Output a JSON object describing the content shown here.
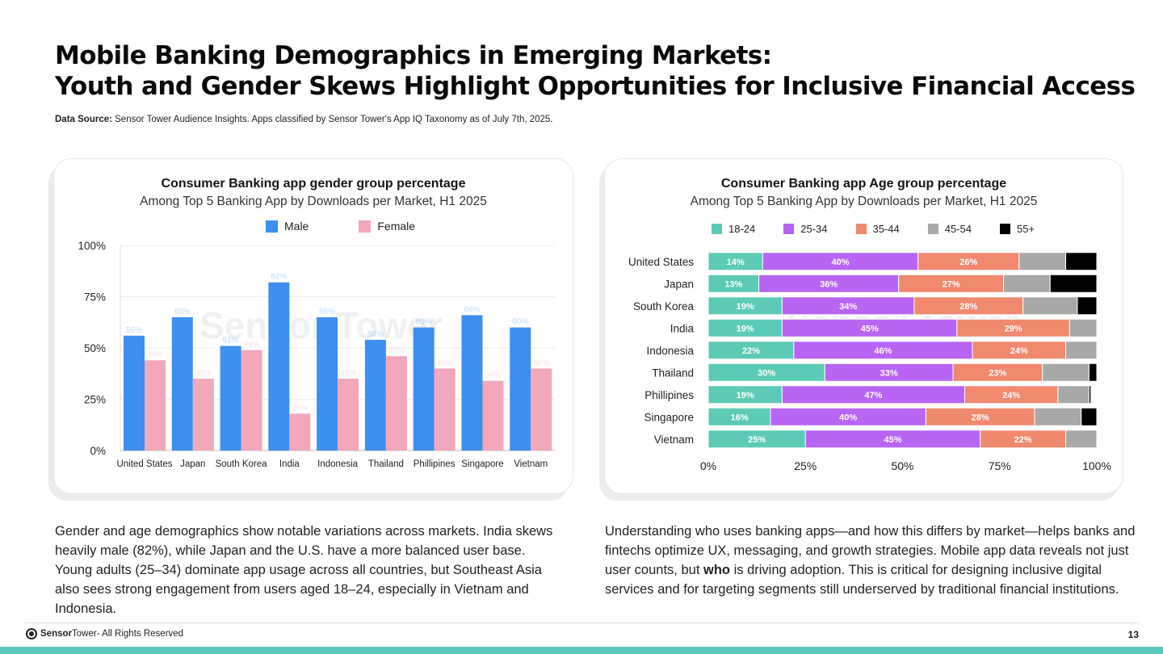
{
  "title_line1": "Mobile Banking Demographics in Emerging Markets:",
  "title_line2": "Youth and Gender Skews Highlight Opportunities for Inclusive Financial Access",
  "source_label": "Data Source:",
  "source_text": "Sensor Tower Audience Insights. Apps classified by Sensor Tower's App IQ Taxonomy as of July 7th, 2025.",
  "colors": {
    "male": "#3d8ff0",
    "female": "#f2a7bb",
    "age_18_24": "#5ccbb5",
    "age_25_34": "#b865f3",
    "age_35_44": "#f0896e",
    "age_45_54": "#a8a8a8",
    "age_55_plus": "#000000",
    "accent": "#5cc8b8"
  },
  "chart_data": [
    {
      "type": "bar",
      "title": "Consumer Banking app gender group percentage",
      "subtitle": "Among Top 5 Banking App by Downloads  per Market, H1  2025",
      "categories": [
        "United States",
        "Japan",
        "South Korea",
        "India",
        "Indonesia",
        "Thailand",
        "Phillipines",
        "Singapore",
        "Vietnam"
      ],
      "series": [
        {
          "name": "Male",
          "values": [
            56,
            65,
            51,
            82,
            65,
            54,
            60,
            66,
            60
          ]
        },
        {
          "name": "Female",
          "values": [
            44,
            35,
            49,
            18,
            35,
            46,
            40,
            34,
            40
          ]
        }
      ],
      "data_labels": {
        "Male": [
          "56%",
          "65%",
          "51%",
          "82%",
          "65%",
          "54%",
          "60%",
          "66%",
          "60%"
        ],
        "Female": [
          "44%",
          "35%",
          "49%",
          "18%",
          "35%",
          "46%",
          "40%",
          "34%",
          "40%"
        ]
      },
      "yticks": [
        "0%",
        "25%",
        "50%",
        "75%",
        "100%"
      ],
      "ytick_values": [
        0,
        25,
        50,
        75,
        100
      ],
      "ylim": [
        0,
        100
      ],
      "xlabel": "",
      "ylabel": "",
      "legend": "top-center",
      "grid": true
    },
    {
      "type": "bar",
      "orientation": "horizontal-stacked",
      "title": "Consumer Banking app Age group percentage",
      "subtitle": "Among Top 5 Banking App by Downloads  per Market, H1  2025",
      "categories": [
        "United States",
        "Japan",
        "South Korea",
        "India",
        "Indonesia",
        "Thailand",
        "Phillipines",
        "Singapore",
        "Vietnam"
      ],
      "series": [
        {
          "name": "18-24",
          "values": [
            14,
            13,
            19,
            19,
            22,
            30,
            19,
            16,
            25
          ]
        },
        {
          "name": "25-34",
          "values": [
            40,
            36,
            34,
            45,
            46,
            33,
            47,
            40,
            45
          ]
        },
        {
          "name": "35-44",
          "values": [
            26,
            27,
            28,
            29,
            24,
            23,
            24,
            28,
            22
          ]
        },
        {
          "name": "45-54",
          "values": [
            12,
            12,
            14,
            7,
            8,
            12,
            8,
            12,
            8
          ]
        },
        {
          "name": "55+",
          "values": [
            8,
            12,
            5,
            0,
            0,
            2,
            0.5,
            4,
            0
          ]
        }
      ],
      "data_labels": {
        "18-24": [
          "14%",
          "13%",
          "19%",
          "19%",
          "22%",
          "30%",
          "19%",
          "16%",
          "25%"
        ],
        "25-34": [
          "40%",
          "36%",
          "34%",
          "45%",
          "46%",
          "33%",
          "47%",
          "40%",
          "45%"
        ],
        "35-44": [
          "26%",
          "27%",
          "28%",
          "29%",
          "24%",
          "23%",
          "24%",
          "28%",
          "22%"
        ]
      },
      "xticks": [
        "0%",
        "25%",
        "50%",
        "75%",
        "100%"
      ],
      "xtick_values": [
        0,
        25,
        50,
        75,
        100
      ],
      "xlim": [
        0,
        100
      ],
      "legend": "top-center",
      "grid": false
    }
  ],
  "body_left": "Gender and age demographics show notable variations across markets. India skews heavily male (82%), while Japan and the U.S. have a more balanced user base. Young adults (25–34) dominate app usage across all countries, but Southeast Asia also sees strong engagement from users aged 18–24, especially in Vietnam and Indonesia.",
  "body_right_before": "Understanding who uses banking apps—and how this differs by market—helps banks and fintechs optimize UX, messaging, and growth strategies. Mobile app data reveals not just user counts, but ",
  "body_right_bold": "who",
  "body_right_after": " is driving adoption. This is critical for designing inclusive digital services and for targeting segments still underserved by traditional financial institutions.",
  "footer": {
    "brand_a": "Sensor",
    "brand_b": "Tower",
    "rights": " - All Rights Reserved",
    "page": "13"
  },
  "watermark": "Sensor Tower"
}
